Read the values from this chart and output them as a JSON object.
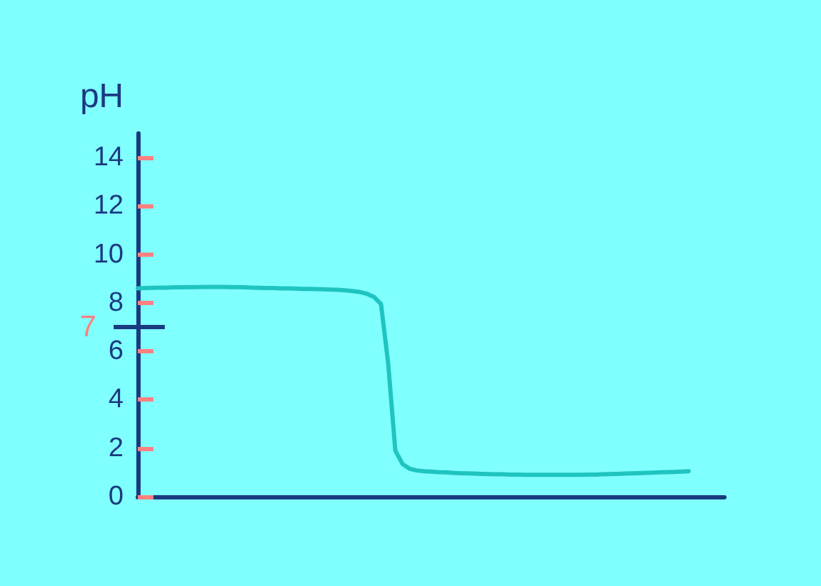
{
  "chart_data": {
    "type": "line",
    "ylabel": "pH",
    "categories": [
      null,
      null,
      null,
      null,
      null,
      null,
      null,
      null,
      null,
      null,
      null,
      null,
      null,
      null,
      null,
      null,
      null,
      null,
      null,
      null,
      null,
      null,
      null,
      null,
      null,
      null,
      null,
      null,
      null,
      null,
      null,
      null,
      null,
      null,
      null,
      null,
      null,
      null,
      null,
      null,
      null,
      null,
      null,
      null,
      null,
      null,
      null,
      null,
      null,
      null,
      null,
      null,
      null,
      null,
      null,
      null,
      null,
      null,
      null,
      null,
      null,
      null,
      null,
      null,
      null,
      null,
      null,
      null,
      null,
      null,
      null,
      null,
      null,
      null,
      null,
      null,
      null,
      null,
      null,
      null,
      null,
      null,
      null
    ],
    "series": [
      {
        "color": "#1fc4c0",
        "values": [
          8.6,
          8.61,
          8.62,
          8.63,
          8.63,
          8.64,
          8.64,
          8.65,
          8.65,
          8.66,
          8.66,
          8.66,
          8.66,
          8.65,
          8.65,
          8.64,
          8.63,
          8.62,
          8.61,
          8.61,
          8.6,
          8.6,
          8.59,
          8.58,
          8.58,
          8.57,
          8.56,
          8.55,
          8.54,
          8.52,
          8.49,
          8.45,
          8.38,
          8.25,
          7.95,
          5.5,
          1.9,
          1.35,
          1.15,
          1.08,
          1.05,
          1.03,
          1.01,
          1.0,
          0.98,
          0.97,
          0.96,
          0.95,
          0.94,
          0.93,
          0.92,
          0.92,
          0.91,
          0.91,
          0.9,
          0.9,
          0.9,
          0.9,
          0.9,
          0.9,
          0.9,
          0.9,
          0.9,
          0.91,
          0.91,
          0.92,
          0.93,
          0.94,
          0.95,
          0.96,
          0.97,
          0.98,
          0.99,
          1.0,
          1.01,
          1.02,
          1.03,
          1.05,
          null,
          null,
          null,
          null,
          null
        ]
      }
    ],
    "ylim": [
      0,
      15
    ],
    "yticks": [
      0,
      2,
      4,
      6,
      8,
      10,
      12,
      14
    ],
    "ref_lines": [
      {
        "axis": "y",
        "value": 7,
        "label": "7",
        "color": "#1a3a80"
      }
    ],
    "grid": false,
    "line_style": "solid",
    "tick_labels": "y"
  }
}
